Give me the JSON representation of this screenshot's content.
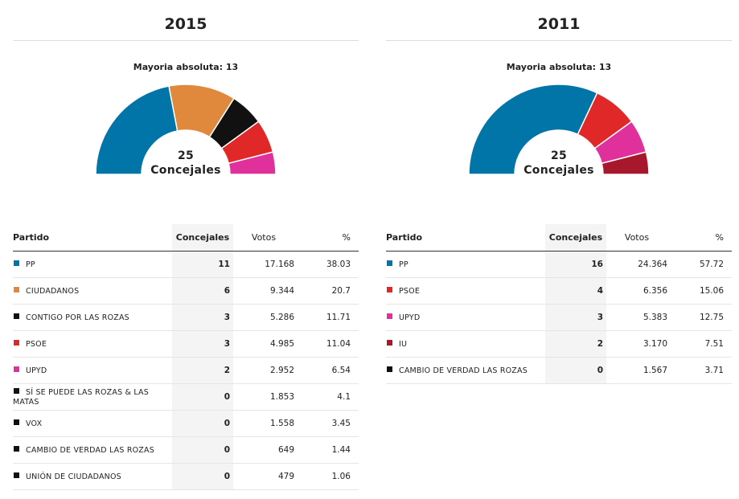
{
  "chart_data": [
    {
      "type": "pie",
      "title": "2015",
      "subtitle": "Mayoria absoluta: 13",
      "center_number": "25",
      "center_label": "Concejales",
      "table_headers": [
        "Partido",
        "Concejales",
        "Votos",
        "%"
      ],
      "rows": [
        {
          "party": "PP",
          "color": "#0175a8",
          "seats": 11,
          "votes": "17.168",
          "pct": "38.03"
        },
        {
          "party": "CIUDADANOS",
          "color": "#e0883c",
          "seats": 6,
          "votes": "9.344",
          "pct": "20.7"
        },
        {
          "party": "CONTIGO POR LAS ROZAS",
          "color": "#111111",
          "seats": 3,
          "votes": "5.286",
          "pct": "11.71"
        },
        {
          "party": "PSOE",
          "color": "#e02828",
          "seats": 3,
          "votes": "4.985",
          "pct": "11.04"
        },
        {
          "party": "UPYD",
          "color": "#e0309c",
          "seats": 2,
          "votes": "2.952",
          "pct": "6.54"
        },
        {
          "party": "SÍ SE PUEDE LAS ROZAS & LAS MATAS",
          "color": "#111111",
          "seats": 0,
          "votes": "1.853",
          "pct": "4.1"
        },
        {
          "party": "VOX",
          "color": "#111111",
          "seats": 0,
          "votes": "1.558",
          "pct": "3.45"
        },
        {
          "party": "CAMBIO DE VERDAD LAS ROZAS",
          "color": "#111111",
          "seats": 0,
          "votes": "649",
          "pct": "1.44"
        },
        {
          "party": "UNIÓN DE CIUDADANOS",
          "color": "#111111",
          "seats": 0,
          "votes": "479",
          "pct": "1.06"
        }
      ]
    },
    {
      "type": "pie",
      "title": "2011",
      "subtitle": "Mayoria absoluta: 13",
      "center_number": "25",
      "center_label": "Concejales",
      "table_headers": [
        "Partido",
        "Concejales",
        "Votos",
        "%"
      ],
      "rows": [
        {
          "party": "PP",
          "color": "#0175a8",
          "seats": 16,
          "votes": "24.364",
          "pct": "57.72"
        },
        {
          "party": "PSOE",
          "color": "#e02828",
          "seats": 4,
          "votes": "6.356",
          "pct": "15.06"
        },
        {
          "party": "UPYD",
          "color": "#e0309c",
          "seats": 3,
          "votes": "5.383",
          "pct": "12.75"
        },
        {
          "party": "IU",
          "color": "#a8182c",
          "seats": 2,
          "votes": "3.170",
          "pct": "7.51"
        },
        {
          "party": "CAMBIO DE VERDAD LAS ROZAS",
          "color": "#111111",
          "seats": 0,
          "votes": "1.567",
          "pct": "3.71"
        }
      ]
    }
  ]
}
